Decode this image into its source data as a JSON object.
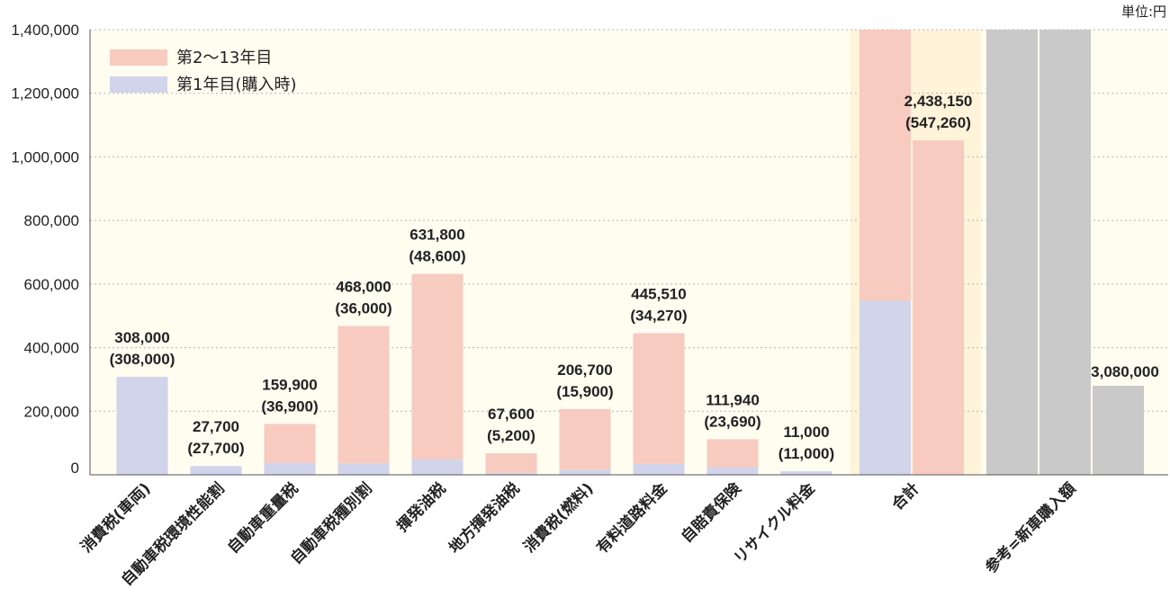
{
  "chart_data": {
    "type": "bar",
    "unit_label": "単位:円",
    "yticks": [
      "1,400,000",
      "1,200,000",
      "1,000,000",
      "800,000",
      "600,000",
      "400,000",
      "200,000",
      "0"
    ],
    "ytick_values": [
      1400000,
      1200000,
      1000000,
      800000,
      600000,
      400000,
      200000,
      0
    ],
    "ylim": [
      0,
      1400000
    ],
    "legend": [
      "第2〜13年目",
      "第1年目(購入時)"
    ],
    "legend_position": "top-left",
    "colors": {
      "years_2_13": "#f7cbc0",
      "year_1": "#d2d4ec",
      "reference": "#c9c9c9",
      "plot_bg": "#fffcf0",
      "band_bg": "#fff3da"
    },
    "categories": [
      "消費税(車両)",
      "自動車税環境性能割",
      "自動車重量税",
      "自動車税種別割",
      "揮発油税",
      "地方揮発油税",
      "消費税(燃料)",
      "有料道路料金",
      "自賠責保険",
      "リサイクル料金"
    ],
    "series": [
      {
        "name": "第1年目(購入時)",
        "values": [
          308000,
          27700,
          36900,
          36000,
          48600,
          5200,
          15900,
          34270,
          23690,
          11000
        ]
      },
      {
        "name": "第2〜13年目",
        "values": [
          0,
          0,
          123000,
          432000,
          583200,
          62400,
          190800,
          411240,
          88250,
          0
        ]
      }
    ],
    "total_labels": [
      "308,000",
      "27,700",
      "159,900",
      "468,000",
      "631,800",
      "67,600",
      "206,700",
      "445,510",
      "111,940",
      "11,000"
    ],
    "first_year_labels": [
      "(308,000)",
      "(27,700)",
      "(36,900)",
      "(36,000)",
      "(48,600)",
      "(5,200)",
      "(15,900)",
      "(34,270)",
      "(23,690)",
      "(11,000)"
    ],
    "total_group": {
      "category": "合計",
      "total_value": 2438150,
      "first_year_value": 547260,
      "label": "2,438,150",
      "first_year_label": "(547,260)"
    },
    "reference_group": {
      "category": "参考=新車購入額",
      "value": 3080000,
      "label": "3,080,000"
    }
  }
}
